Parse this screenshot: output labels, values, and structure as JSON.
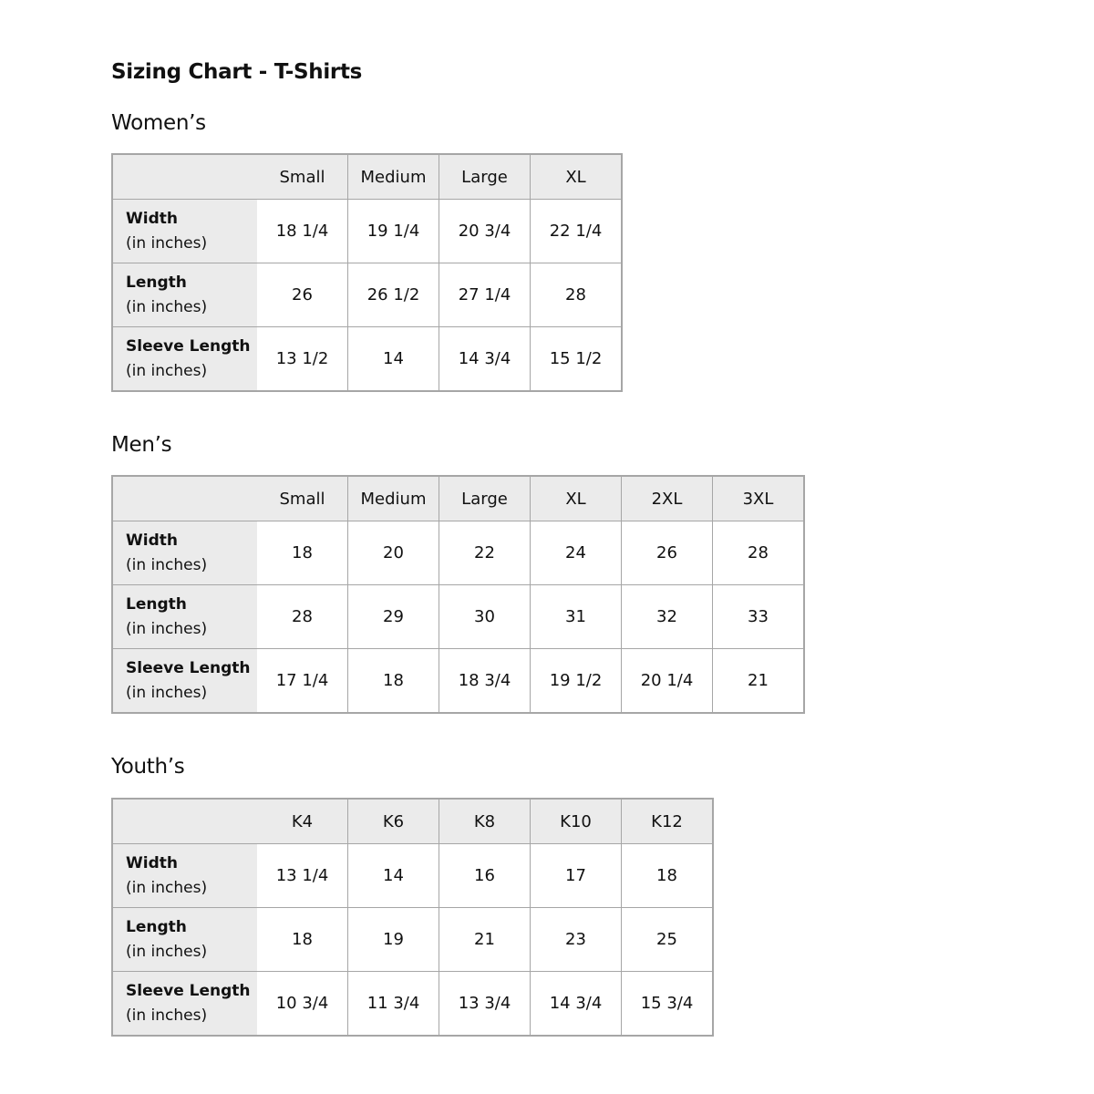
{
  "title": "Sizing Chart - T-Shirts",
  "unit_note": "(in inches)",
  "sections": [
    {
      "heading": "Women’s",
      "sizes": [
        "Small",
        "Medium",
        "Large",
        "XL"
      ],
      "rows": [
        {
          "label": "Width",
          "values": [
            "18 1/4",
            "19 1/4",
            "20 3/4",
            "22 1/4"
          ]
        },
        {
          "label": "Length",
          "values": [
            "26",
            "26 1/2",
            "27 1/4",
            "28"
          ]
        },
        {
          "label": "Sleeve Length",
          "values": [
            "13 1/2",
            "14",
            "14 3/4",
            "15 1/2"
          ]
        }
      ]
    },
    {
      "heading": "Men’s",
      "sizes": [
        "Small",
        "Medium",
        "Large",
        "XL",
        "2XL",
        "3XL"
      ],
      "rows": [
        {
          "label": "Width",
          "values": [
            "18",
            "20",
            "22",
            "24",
            "26",
            "28"
          ]
        },
        {
          "label": "Length",
          "values": [
            "28",
            "29",
            "30",
            "31",
            "32",
            "33"
          ]
        },
        {
          "label": "Sleeve Length",
          "values": [
            "17 1/4",
            "18",
            "18 3/4",
            "19 1/2",
            "20 1/4",
            "21"
          ]
        }
      ]
    },
    {
      "heading": "Youth’s",
      "sizes": [
        "K4",
        "K6",
        "K8",
        "K10",
        "K12"
      ],
      "rows": [
        {
          "label": "Width",
          "values": [
            "13 1/4",
            "14",
            "16",
            "17",
            "18"
          ]
        },
        {
          "label": "Length",
          "values": [
            "18",
            "19",
            "21",
            "23",
            "25"
          ]
        },
        {
          "label": "Sleeve Length",
          "values": [
            "10 3/4",
            "11 3/4",
            "13 3/4",
            "14 3/4",
            "15 3/4"
          ]
        }
      ]
    }
  ]
}
